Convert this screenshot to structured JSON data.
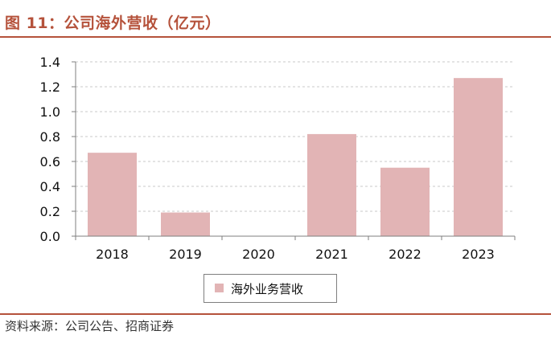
{
  "title": "图 11：公司海外营收（亿元）",
  "source": "资料来源：公司公告、招商证券",
  "colors": {
    "accent": "#b5523b",
    "bar": "#e2b4b5",
    "grid": "#c8c8c8"
  },
  "chart_data": {
    "type": "bar",
    "categories": [
      "2018",
      "2019",
      "2020",
      "2021",
      "2022",
      "2023"
    ],
    "series": [
      {
        "name": "海外业务营收",
        "values": [
          0.67,
          0.19,
          0,
          0.82,
          0.55,
          1.27
        ]
      }
    ],
    "ylim": [
      0,
      1.4
    ],
    "yticks": [
      "0.0",
      "0.2",
      "0.4",
      "0.6",
      "0.8",
      "1.0",
      "1.2",
      "1.4"
    ],
    "grid": true,
    "legend": "bottom"
  }
}
